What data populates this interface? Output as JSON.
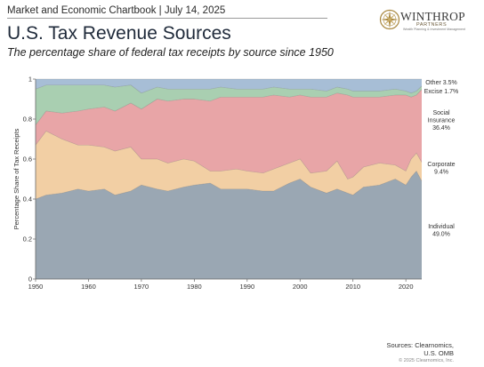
{
  "header": {
    "topline": "Market and Economic Chartbook | July 14, 2025",
    "title": "U.S. Tax Revenue Sources",
    "subtitle": "The percentage share of federal tax receipts by source since 1950"
  },
  "logo": {
    "name": "WINTHROP",
    "sub": "PARTNERS",
    "tag": "Wealth Planning & Investment Management",
    "color": "#a9883f"
  },
  "footer": {
    "sources_line1": "Sources: Clearnomics,",
    "sources_line2": "U.S. OMB",
    "copyright": "© 2025 Clearnomics, Inc."
  },
  "chart_data": {
    "type": "area",
    "stacked": true,
    "ylabel": "Percentage Share of Tax Receipts",
    "xlim": [
      1950,
      2023
    ],
    "ylim": [
      0,
      1
    ],
    "x_ticks": [
      1950,
      1960,
      1970,
      1980,
      1990,
      2000,
      2010,
      2020
    ],
    "y_ticks": [
      0,
      0.2,
      0.4,
      0.6,
      0.8,
      1
    ],
    "x": [
      1950,
      1952,
      1955,
      1958,
      1960,
      1963,
      1965,
      1968,
      1970,
      1973,
      1975,
      1978,
      1980,
      1983,
      1985,
      1988,
      1990,
      1993,
      1995,
      1998,
      2000,
      2002,
      2005,
      2007,
      2009,
      2010,
      2012,
      2015,
      2018,
      2020,
      2021,
      2022,
      2023
    ],
    "series": [
      {
        "name": "Individual",
        "color": "#9aa7b3",
        "values": [
          0.4,
          0.42,
          0.43,
          0.45,
          0.44,
          0.45,
          0.42,
          0.44,
          0.47,
          0.45,
          0.44,
          0.46,
          0.47,
          0.48,
          0.45,
          0.45,
          0.45,
          0.44,
          0.44,
          0.48,
          0.5,
          0.46,
          0.43,
          0.45,
          0.43,
          0.42,
          0.46,
          0.47,
          0.5,
          0.47,
          0.51,
          0.54,
          0.49
        ]
      },
      {
        "name": "Corporate",
        "color": "#f2cfa4",
        "values": [
          0.27,
          0.32,
          0.27,
          0.22,
          0.23,
          0.21,
          0.22,
          0.22,
          0.13,
          0.15,
          0.14,
          0.14,
          0.12,
          0.06,
          0.09,
          0.1,
          0.09,
          0.09,
          0.11,
          0.1,
          0.1,
          0.07,
          0.11,
          0.14,
          0.07,
          0.09,
          0.1,
          0.11,
          0.07,
          0.07,
          0.09,
          0.09,
          0.094
        ]
      },
      {
        "name": "Social Insurance",
        "color": "#e8a5a7",
        "values": [
          0.1,
          0.1,
          0.13,
          0.17,
          0.18,
          0.2,
          0.2,
          0.22,
          0.25,
          0.3,
          0.31,
          0.3,
          0.31,
          0.35,
          0.37,
          0.36,
          0.37,
          0.38,
          0.37,
          0.33,
          0.32,
          0.38,
          0.37,
          0.34,
          0.42,
          0.4,
          0.35,
          0.33,
          0.35,
          0.38,
          0.31,
          0.29,
          0.364
        ]
      },
      {
        "name": "Excise",
        "color": "#a9cfb1",
        "values": [
          0.18,
          0.13,
          0.14,
          0.13,
          0.12,
          0.11,
          0.12,
          0.09,
          0.08,
          0.06,
          0.06,
          0.05,
          0.05,
          0.06,
          0.05,
          0.04,
          0.04,
          0.04,
          0.04,
          0.04,
          0.03,
          0.04,
          0.03,
          0.03,
          0.03,
          0.03,
          0.03,
          0.03,
          0.03,
          0.02,
          0.02,
          0.02,
          0.017
        ]
      },
      {
        "name": "Other",
        "color": "#a7bed6",
        "values": [
          0.05,
          0.03,
          0.03,
          0.03,
          0.03,
          0.03,
          0.04,
          0.03,
          0.07,
          0.04,
          0.05,
          0.05,
          0.05,
          0.05,
          0.04,
          0.05,
          0.05,
          0.05,
          0.04,
          0.05,
          0.05,
          0.05,
          0.06,
          0.04,
          0.05,
          0.06,
          0.06,
          0.06,
          0.05,
          0.06,
          0.07,
          0.06,
          0.035
        ]
      }
    ],
    "series_labels": [
      {
        "series": "Other",
        "lines": [
          "Other 3.5%"
        ]
      },
      {
        "series": "Excise",
        "lines": [
          "Excise 1.7%"
        ]
      },
      {
        "series": "Social Insurance",
        "lines": [
          "Social",
          "Insurance",
          "36.4%"
        ]
      },
      {
        "series": "Corporate",
        "lines": [
          "Corporate",
          "9.4%"
        ]
      },
      {
        "series": "Individual",
        "lines": [
          "Individual",
          "49.0%"
        ]
      }
    ]
  }
}
